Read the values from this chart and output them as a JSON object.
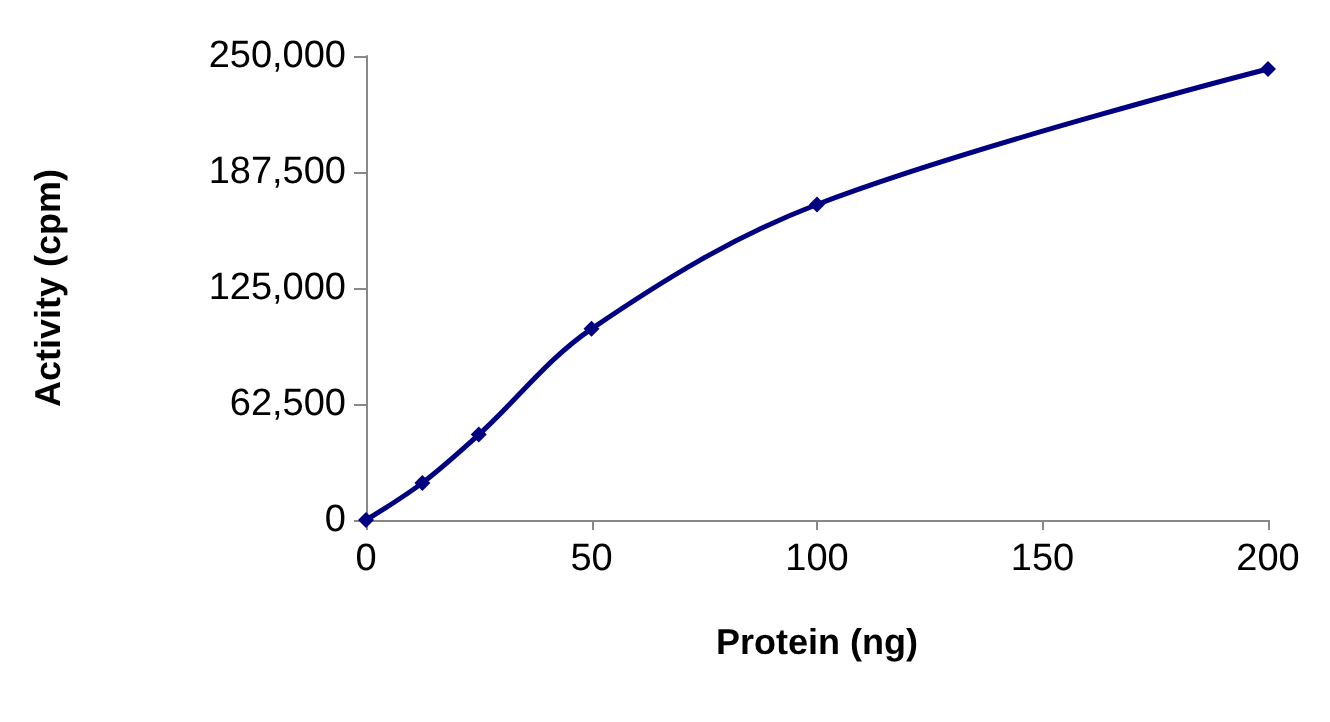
{
  "chart_data": {
    "type": "line",
    "xlabel": "Protein (ng)",
    "ylabel": "Activity (cpm)",
    "x": [
      0,
      12.5,
      25,
      50,
      100,
      200
    ],
    "series": [
      {
        "color": "#000080",
        "values": [
          0,
          20000,
          46000,
          103000,
          170000,
          243000
        ]
      }
    ],
    "xlim": [
      0,
      200
    ],
    "xticks": [
      0,
      50,
      100,
      150,
      200
    ],
    "ylim": [
      0,
      250000
    ],
    "yticks": [
      0,
      {
        "value": 62500,
        "label": "62,500"
      },
      {
        "value": 125000,
        "label": "125,000"
      },
      {
        "value": 187500,
        "label": "187,500"
      },
      {
        "value": 250000,
        "label": "250,000"
      }
    ],
    "grid": false,
    "marker": "diamond",
    "line_style": "solid"
  }
}
